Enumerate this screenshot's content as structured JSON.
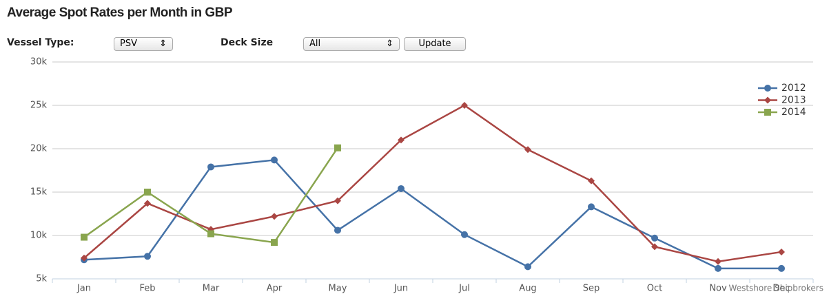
{
  "title": "Average Spot Rates per Month in GBP",
  "controls": {
    "vessel_label": "Vessel Type:",
    "vessel_value": "PSV",
    "deck_label": "Deck Size",
    "deck_value": "All",
    "button": "Update"
  },
  "chart_data": {
    "type": "line",
    "categories": [
      "Jan",
      "Feb",
      "Mar",
      "Apr",
      "May",
      "Jun",
      "Jul",
      "Aug",
      "Sep",
      "Oct",
      "Nov",
      "Dec"
    ],
    "series": [
      {
        "name": "2012",
        "color": "#4572a7",
        "marker": "circle",
        "values": [
          7200,
          7600,
          17900,
          18700,
          10600,
          15400,
          10100,
          6400,
          13300,
          9700,
          6200,
          6200
        ]
      },
      {
        "name": "2013",
        "color": "#aa4643",
        "marker": "diamond",
        "values": [
          7400,
          13700,
          10700,
          12200,
          14000,
          21000,
          25000,
          19900,
          16300,
          8700,
          7000,
          8100
        ]
      },
      {
        "name": "2014",
        "color": "#89a54e",
        "marker": "square",
        "values": [
          9800,
          15000,
          10200,
          9200,
          20100,
          null,
          null,
          null,
          null,
          null,
          null,
          null
        ]
      }
    ],
    "ylim": [
      5000,
      30000
    ],
    "yticks": [
      {
        "value": 5000,
        "label": "5k"
      },
      {
        "value": 10000,
        "label": "10k"
      },
      {
        "value": 15000,
        "label": "15k"
      },
      {
        "value": 20000,
        "label": "20k"
      },
      {
        "value": 25000,
        "label": "25k"
      },
      {
        "value": 30000,
        "label": "30k"
      }
    ],
    "grid": true,
    "legend": "top-right",
    "credit": "Westshore Shipbrokers"
  }
}
